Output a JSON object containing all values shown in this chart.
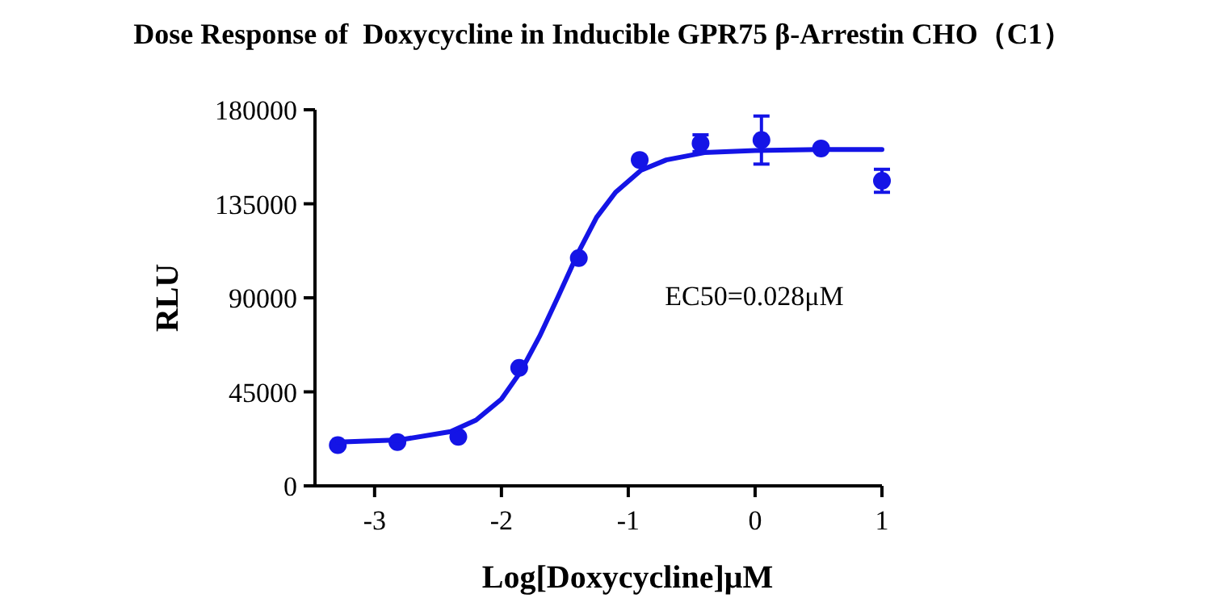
{
  "chart_data": {
    "type": "scatter",
    "title": "Dose Response of  Doxycycline in Inducible GPR75 β-Arrestin CHO（C1）",
    "xlabel": "Log[Doxycycline]μM",
    "ylabel": "RLU",
    "annotations": [
      "EC50=0.028μM"
    ],
    "xlim": [
      -3.47,
      1
    ],
    "xticks": [
      -3,
      -2,
      -1,
      0,
      1
    ],
    "ylim": [
      0,
      180000
    ],
    "yticks": [
      0,
      45000,
      90000,
      135000,
      180000
    ],
    "grid": false,
    "marker": "circle",
    "series": [
      {
        "color": "#1414e6",
        "x": [
          -3.29,
          -2.82,
          -2.34,
          -1.86,
          -1.39,
          -0.91,
          -0.43,
          0.05,
          0.52,
          1.0
        ],
        "values": [
          19500,
          21000,
          23500,
          56500,
          109000,
          156000,
          164000,
          165500,
          161500,
          146000
        ],
        "errors": [
          null,
          null,
          null,
          null,
          null,
          null,
          4000,
          11500,
          null,
          5500
        ]
      },
      {
        "type": "line",
        "color": "#1414e6",
        "marker": "none",
        "x": [
          -3.29,
          -2.8,
          -2.4,
          -2.2,
          -2.0,
          -1.85,
          -1.7,
          -1.55,
          -1.4,
          -1.25,
          -1.1,
          -0.9,
          -0.7,
          -0.4,
          0,
          0.5,
          1.0
        ],
        "values": [
          21000,
          22000,
          26000,
          31500,
          41500,
          54500,
          71500,
          91000,
          111000,
          128500,
          140500,
          151000,
          156000,
          159500,
          160500,
          161000,
          161000
        ]
      }
    ]
  }
}
